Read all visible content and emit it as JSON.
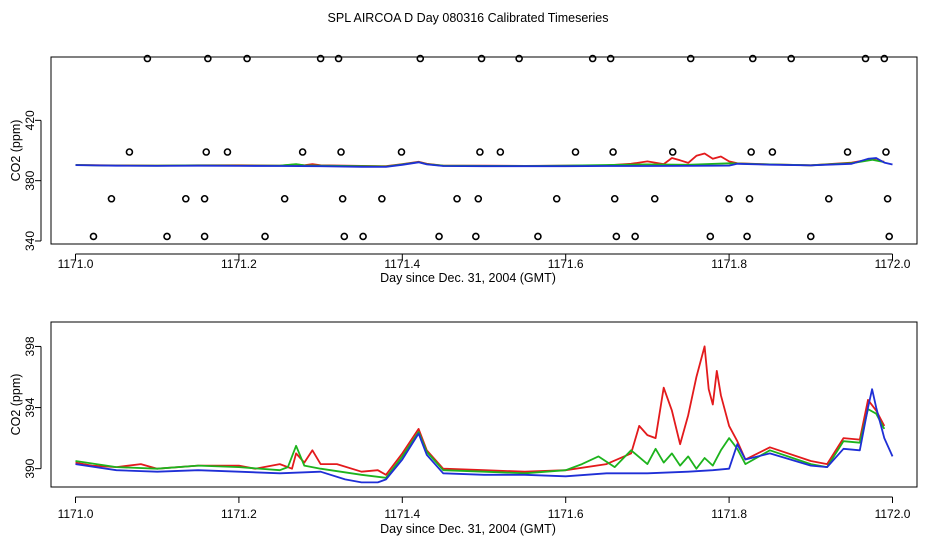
{
  "figure_title": "SPL AIRCOA D  Day 080316  Calibrated Timeseries",
  "chart_data": [
    {
      "type": "line",
      "panel": "top",
      "title": "SPL AIRCOA D  Day 080316  Calibrated Timeseries",
      "xlabel": "Day since Dec. 31, 2004 (GMT)",
      "ylabel": "CO2 (ppm)",
      "xlim": [
        1170.97,
        1172.03
      ],
      "ylim": [
        338,
        462
      ],
      "x_ticks": [
        1171.0,
        1171.2,
        1171.4,
        1171.6,
        1171.8,
        1172.0
      ],
      "x_tick_labels": [
        "1171.0",
        "1171.2",
        "1171.4",
        "1171.6",
        "1171.8",
        "1172.0"
      ],
      "y_ticks": [
        340,
        380,
        420
      ],
      "y_tick_labels": [
        "340",
        "380",
        "420"
      ],
      "legend": "none",
      "markers": {
        "name": "calibration points",
        "color": "#000000",
        "x": [
          1171.022,
          1171.044,
          1171.066,
          1171.088,
          1171.112,
          1171.135,
          1171.158,
          1171.158,
          1171.16,
          1171.162,
          1171.186,
          1171.21,
          1171.232,
          1171.256,
          1171.278,
          1171.3,
          1171.322,
          1171.325,
          1171.327,
          1171.329,
          1171.352,
          1171.375,
          1171.399,
          1171.422,
          1171.445,
          1171.467,
          1171.49,
          1171.493,
          1171.495,
          1171.497,
          1171.52,
          1171.543,
          1171.566,
          1171.589,
          1171.612,
          1171.633,
          1171.655,
          1171.658,
          1171.66,
          1171.662,
          1171.685,
          1171.709,
          1171.731,
          1171.753,
          1171.777,
          1171.8,
          1171.822,
          1171.825,
          1171.827,
          1171.829,
          1171.853,
          1171.876,
          1171.9,
          1171.922,
          1171.945,
          1171.967,
          1171.99,
          1171.992,
          1171.994,
          1171.996
        ],
        "y": [
          343,
          368,
          399,
          461,
          343,
          368,
          343,
          368,
          399,
          461,
          399,
          461,
          343,
          368,
          399,
          461,
          461,
          399,
          368,
          343,
          343,
          368,
          399,
          461,
          343,
          368,
          343,
          368,
          399,
          461,
          399,
          461,
          343,
          368,
          399,
          461,
          461,
          399,
          368,
          343,
          343,
          368,
          399,
          461,
          343,
          368,
          343,
          368,
          399,
          461,
          399,
          461,
          343,
          368,
          399,
          461,
          461,
          399,
          368,
          343
        ]
      },
      "series": [
        {
          "name": "red",
          "color": "#e31a1c",
          "x": [
            1171.0,
            1171.05,
            1171.1,
            1171.15,
            1171.2,
            1171.25,
            1171.27,
            1171.28,
            1171.29,
            1171.3,
            1171.35,
            1171.38,
            1171.4,
            1171.42,
            1171.43,
            1171.45,
            1171.5,
            1171.55,
            1171.6,
            1171.65,
            1171.68,
            1171.7,
            1171.72,
            1171.73,
            1171.74,
            1171.75,
            1171.76,
            1171.77,
            1171.78,
            1171.79,
            1171.8,
            1171.81,
            1171.85,
            1171.9,
            1171.95,
            1171.975,
            1171.99
          ],
          "y": [
            390.4,
            390.1,
            390.0,
            390.2,
            390.2,
            390.0,
            390.8,
            390.2,
            390.9,
            390.2,
            389.8,
            389.6,
            391.0,
            392.5,
            391.2,
            389.9,
            389.9,
            389.8,
            389.9,
            390.1,
            391.2,
            392.8,
            391.0,
            395.0,
            393.5,
            391.8,
            396.5,
            398.0,
            394.5,
            396.0,
            392.8,
            391.5,
            390.8,
            390.2,
            392.0,
            394.2,
            392.5
          ]
        },
        {
          "name": "green",
          "color": "#1db31d",
          "x": [
            1171.0,
            1171.05,
            1171.1,
            1171.15,
            1171.2,
            1171.25,
            1171.27,
            1171.28,
            1171.3,
            1171.35,
            1171.38,
            1171.4,
            1171.42,
            1171.43,
            1171.45,
            1171.5,
            1171.55,
            1171.6,
            1171.65,
            1171.7,
            1171.75,
            1171.8,
            1171.85,
            1171.9,
            1171.95,
            1171.975,
            1171.99
          ],
          "y": [
            390.4,
            390.0,
            389.9,
            390.1,
            390.0,
            389.9,
            391.0,
            390.1,
            390.0,
            389.6,
            389.4,
            390.8,
            392.3,
            391.0,
            389.9,
            389.8,
            389.7,
            389.9,
            390.4,
            390.8,
            390.5,
            391.5,
            390.8,
            390.2,
            391.6,
            393.8,
            392.3
          ]
        },
        {
          "name": "blue",
          "color": "#1f2fd6",
          "x": [
            1171.0,
            1171.05,
            1171.1,
            1171.15,
            1171.2,
            1171.25,
            1171.3,
            1171.35,
            1171.38,
            1171.4,
            1171.42,
            1171.43,
            1171.45,
            1171.5,
            1171.55,
            1171.6,
            1171.65,
            1171.7,
            1171.75,
            1171.78,
            1171.8,
            1171.81,
            1171.85,
            1171.9,
            1171.95,
            1171.97,
            1171.98,
            1171.99,
            1172.0
          ],
          "y": [
            390.3,
            389.9,
            389.8,
            389.9,
            389.8,
            389.7,
            389.6,
            389.2,
            389.1,
            390.5,
            392.2,
            390.8,
            389.7,
            389.6,
            389.6,
            389.6,
            389.7,
            389.7,
            389.8,
            389.9,
            390.0,
            391.2,
            390.6,
            390.1,
            391.2,
            394.5,
            395.0,
            392.0,
            390.7
          ]
        }
      ]
    },
    {
      "type": "line",
      "panel": "bottom",
      "title": "",
      "xlabel": "Day since Dec. 31, 2004 (GMT)",
      "ylabel": "CO2 (ppm)",
      "xlim": [
        1170.97,
        1172.03
      ],
      "ylim": [
        388.8,
        399.6
      ],
      "x_ticks": [
        1171.0,
        1171.2,
        1171.4,
        1171.6,
        1171.8,
        1172.0
      ],
      "x_tick_labels": [
        "1171.0",
        "1171.2",
        "1171.4",
        "1171.6",
        "1171.8",
        "1172.0"
      ],
      "y_ticks": [
        390,
        394,
        398
      ],
      "y_tick_labels": [
        "390",
        "394",
        "398"
      ],
      "legend": "none",
      "series": [
        {
          "name": "red",
          "color": "#e31a1c",
          "x": [
            1171.0,
            1171.02,
            1171.05,
            1171.08,
            1171.1,
            1171.15,
            1171.2,
            1171.22,
            1171.25,
            1171.265,
            1171.27,
            1171.28,
            1171.29,
            1171.3,
            1171.32,
            1171.35,
            1171.37,
            1171.38,
            1171.4,
            1171.42,
            1171.43,
            1171.45,
            1171.5,
            1171.55,
            1171.6,
            1171.65,
            1171.68,
            1171.69,
            1171.7,
            1171.71,
            1171.72,
            1171.73,
            1171.74,
            1171.75,
            1171.76,
            1171.77,
            1171.775,
            1171.78,
            1171.785,
            1171.79,
            1171.8,
            1171.81,
            1171.82,
            1171.85,
            1171.9,
            1171.92,
            1171.94,
            1171.96,
            1171.97,
            1171.98,
            1171.99
          ],
          "y": [
            390.4,
            390.2,
            390.1,
            390.3,
            390.0,
            390.2,
            390.2,
            390.0,
            390.3,
            390.0,
            391.0,
            390.4,
            391.2,
            390.3,
            390.3,
            389.8,
            389.9,
            389.6,
            391.0,
            392.6,
            391.2,
            390.0,
            389.9,
            389.8,
            389.9,
            390.3,
            391.0,
            392.8,
            392.2,
            392.0,
            395.3,
            393.8,
            391.6,
            393.5,
            396.0,
            398.0,
            395.2,
            394.2,
            396.4,
            394.8,
            392.8,
            391.8,
            390.6,
            391.4,
            390.5,
            390.3,
            392.0,
            391.9,
            394.5,
            393.8,
            392.8
          ]
        },
        {
          "name": "green",
          "color": "#1db31d",
          "x": [
            1171.0,
            1171.05,
            1171.1,
            1171.15,
            1171.2,
            1171.25,
            1171.26,
            1171.27,
            1171.28,
            1171.3,
            1171.35,
            1171.38,
            1171.4,
            1171.42,
            1171.43,
            1171.45,
            1171.5,
            1171.55,
            1171.6,
            1171.62,
            1171.64,
            1171.66,
            1171.68,
            1171.7,
            1171.71,
            1171.72,
            1171.73,
            1171.74,
            1171.75,
            1171.76,
            1171.77,
            1171.78,
            1171.79,
            1171.8,
            1171.81,
            1171.82,
            1171.85,
            1171.9,
            1171.92,
            1171.94,
            1171.96,
            1171.97,
            1171.98,
            1171.99
          ],
          "y": [
            390.5,
            390.1,
            390.0,
            390.2,
            390.1,
            389.9,
            390.1,
            391.5,
            390.2,
            390.0,
            389.6,
            389.4,
            390.8,
            392.4,
            391.1,
            389.9,
            389.8,
            389.7,
            389.9,
            390.3,
            390.8,
            390.1,
            391.2,
            390.3,
            391.3,
            390.4,
            391.0,
            390.2,
            390.8,
            390.0,
            390.7,
            390.2,
            391.2,
            392.0,
            391.3,
            390.3,
            391.2,
            390.3,
            390.1,
            391.8,
            391.7,
            393.9,
            393.6,
            392.6
          ]
        },
        {
          "name": "blue",
          "color": "#1f2fd6",
          "x": [
            1171.0,
            1171.05,
            1171.1,
            1171.15,
            1171.2,
            1171.25,
            1171.3,
            1171.33,
            1171.35,
            1171.37,
            1171.38,
            1171.4,
            1171.42,
            1171.43,
            1171.45,
            1171.5,
            1171.55,
            1171.6,
            1171.65,
            1171.7,
            1171.75,
            1171.78,
            1171.8,
            1171.81,
            1171.82,
            1171.85,
            1171.9,
            1171.92,
            1171.94,
            1171.96,
            1171.97,
            1171.975,
            1171.98,
            1171.99,
            1172.0
          ],
          "y": [
            390.3,
            389.9,
            389.8,
            389.9,
            389.8,
            389.7,
            389.8,
            389.3,
            389.1,
            389.1,
            389.3,
            390.6,
            392.3,
            390.9,
            389.7,
            389.6,
            389.6,
            389.5,
            389.7,
            389.7,
            389.8,
            389.9,
            390.0,
            391.6,
            390.6,
            391.0,
            390.2,
            390.1,
            391.3,
            391.2,
            394.0,
            395.2,
            394.0,
            392.0,
            390.8
          ]
        }
      ]
    }
  ]
}
